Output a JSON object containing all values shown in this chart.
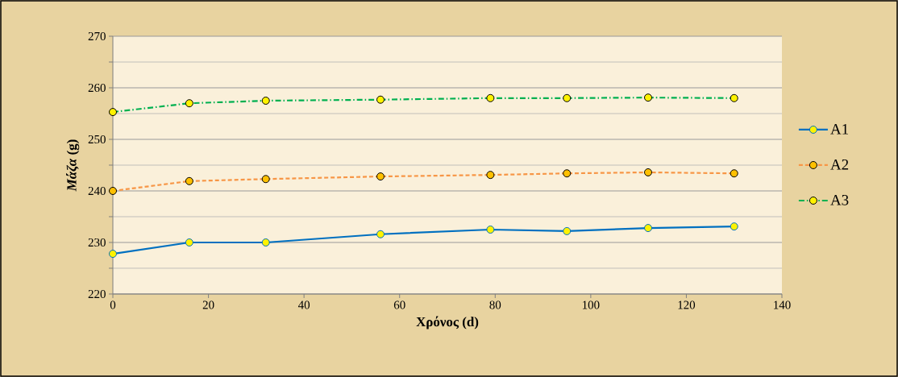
{
  "chart_data": {
    "type": "line",
    "xlabel": "Χρόνος (d)",
    "ylabel": "*Μάζα* (g)",
    "x": [
      0,
      16,
      32,
      56,
      79,
      95,
      112,
      130
    ],
    "series": [
      {
        "name": "A1",
        "color": "#0070c0",
        "line_style": "solid",
        "values": [
          227.8,
          230.0,
          230.0,
          231.6,
          232.5,
          232.2,
          232.8,
          233.1
        ]
      },
      {
        "name": "A2",
        "color": "#f79646",
        "line_style": "dashed",
        "values": [
          240.0,
          241.9,
          242.3,
          242.8,
          243.1,
          243.4,
          243.6,
          243.4
        ]
      },
      {
        "name": "A3",
        "color": "#00b050",
        "line_style": "dashdot",
        "values": [
          255.3,
          257.0,
          257.5,
          257.7,
          258.0,
          258.0,
          258.1,
          258.0
        ]
      }
    ],
    "xlim": [
      0,
      140
    ],
    "xticks": [
      0,
      20,
      40,
      60,
      80,
      100,
      120,
      140
    ],
    "ylim": [
      220,
      270
    ],
    "yticks": [
      220,
      230,
      240,
      250,
      260,
      270
    ],
    "grid": "y",
    "legend": "right",
    "marker": "circle"
  }
}
